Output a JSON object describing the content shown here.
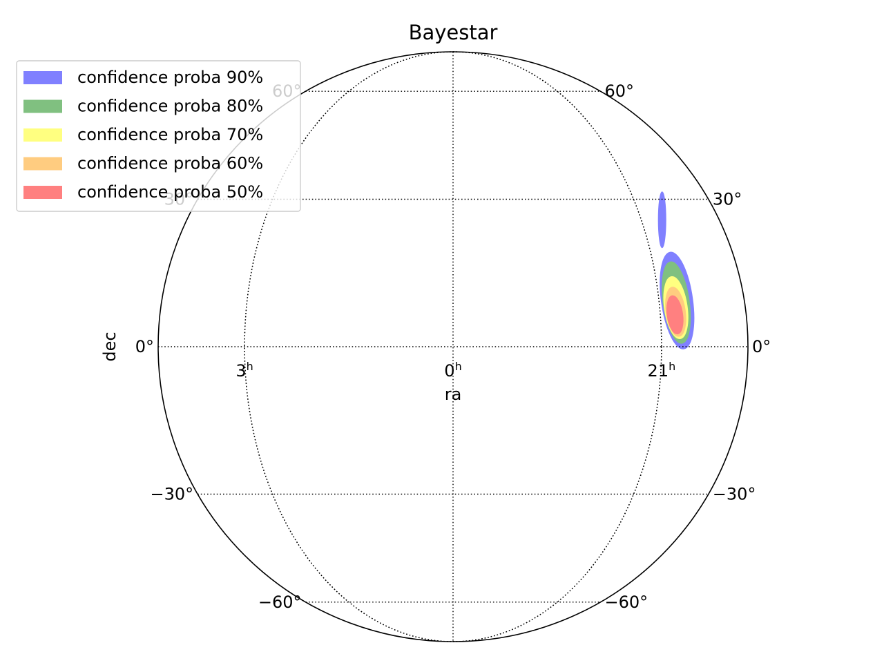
{
  "chart_data": {
    "type": "contour",
    "projection": "orthographic-globe",
    "title": "Bayestar",
    "xlabel": "ra",
    "ylabel": "dec",
    "ra_tick_labels": [
      {
        "hours": 3,
        "base": "3",
        "sup": "h"
      },
      {
        "hours": 0,
        "base": "0",
        "sup": "h"
      },
      {
        "hours": 21,
        "base": "21",
        "sup": "h"
      }
    ],
    "dec_tick_labels": [
      {
        "dec": 60,
        "left": "60°",
        "right": "60°"
      },
      {
        "dec": 30,
        "left": "30°",
        "right": "30°"
      },
      {
        "dec": 0,
        "left": "0°",
        "right": "0°"
      },
      {
        "dec": -30,
        "left": "−30°",
        "right": "−30°"
      },
      {
        "dec": -60,
        "left": "−60°",
        "right": "−60°"
      }
    ],
    "grid": true,
    "legend_placement": "upper-left",
    "series": [
      {
        "name": "confidence proba 90%",
        "color": "#8080ff",
        "regions": [
          {
            "ra_h": 20.55,
            "dec": 25.5,
            "dra_h": 0.09,
            "ddec": 6.2,
            "tilt": 0
          },
          {
            "ra_h": 20.65,
            "dec": 9.0,
            "dra_h": 0.34,
            "ddec": 9.8,
            "tilt": -8
          }
        ]
      },
      {
        "name": "confidence proba 80%",
        "color": "#80c080",
        "regions": [
          {
            "ra_h": 20.67,
            "dec": 8.6,
            "dra_h": 0.28,
            "ddec": 8.2,
            "tilt": -8
          }
        ]
      },
      {
        "name": "confidence proba 70%",
        "color": "#ffff80",
        "regions": [
          {
            "ra_h": 20.69,
            "dec": 7.6,
            "dra_h": 0.24,
            "ddec": 6.2,
            "tilt": -8
          }
        ]
      },
      {
        "name": "confidence proba 60%",
        "color": "#ffcc80",
        "regions": [
          {
            "ra_h": 20.7,
            "dec": 6.8,
            "dra_h": 0.2,
            "ddec": 4.9,
            "tilt": -8
          }
        ]
      },
      {
        "name": "confidence proba 50%",
        "color": "#ff8080",
        "regions": [
          {
            "ra_h": 20.72,
            "dec": 6.2,
            "dra_h": 0.16,
            "ddec": 3.8,
            "tilt": -8
          }
        ]
      }
    ]
  }
}
